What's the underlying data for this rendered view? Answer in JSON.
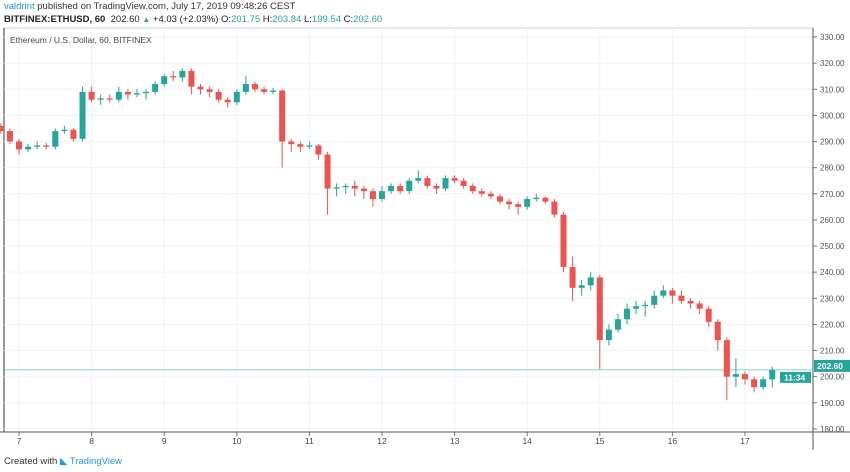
{
  "header": {
    "author": "valdrint",
    "published": "published on TradingView.com, July 17, 2019 09:48:26 CEST",
    "symbol": "BITFINEX:ETHUSD, 60",
    "last": "202.60",
    "change": "+4.03 (+2.03%)",
    "o_label": "O:",
    "o": "201.75",
    "h_label": "H:",
    "h": "203.84",
    "l_label": "L:",
    "l": "199.54",
    "c_label": "C:",
    "c": "202.60"
  },
  "footer": {
    "created_with": "Created with",
    "brand": "TradingView"
  },
  "colors": {
    "up": "#26a69a",
    "down": "#ef5350",
    "price_line": "#26a69a",
    "grid": "#f0f3fa"
  },
  "chart_data": {
    "type": "candlestick",
    "title": "Ethereum / U.S. Dollar, 60, BITFINEX",
    "ylim": [
      177,
      333
    ],
    "y_ticks": [
      "180.00",
      "190.00",
      "200.00",
      "210.00",
      "220.00",
      "230.00",
      "240.00",
      "250.00",
      "260.00",
      "270.00",
      "280.00",
      "290.00",
      "300.00",
      "310.00",
      "320.00",
      "330.00"
    ],
    "x_ticks": [
      "7",
      "8",
      "9",
      "10",
      "11",
      "12",
      "13",
      "14",
      "15",
      "16",
      "17"
    ],
    "grid": true,
    "current_price": 202.6,
    "current_price_label": "202.60",
    "countdown_label": "11:34",
    "candles_columns": [
      "day",
      "hour",
      "open",
      "high",
      "low",
      "close"
    ],
    "candles": [
      [
        6,
        18,
        296,
        297,
        293,
        294
      ],
      [
        6,
        21,
        294,
        295,
        289,
        290
      ],
      [
        7,
        0,
        290,
        291,
        285,
        287
      ],
      [
        7,
        3,
        287,
        289,
        286,
        288
      ],
      [
        7,
        6,
        288,
        290,
        287,
        288.5
      ],
      [
        7,
        9,
        288.5,
        289.5,
        287,
        288
      ],
      [
        7,
        12,
        288,
        295,
        287,
        294
      ],
      [
        7,
        15,
        294,
        296,
        293,
        294.5
      ],
      [
        7,
        18,
        294.5,
        295,
        290,
        291
      ],
      [
        7,
        21,
        291,
        311,
        290,
        309
      ],
      [
        8,
        0,
        309,
        311,
        305,
        306
      ],
      [
        8,
        3,
        306,
        308,
        304,
        306.5
      ],
      [
        8,
        6,
        306.5,
        308,
        305,
        306
      ],
      [
        8,
        9,
        306,
        311,
        305,
        309
      ],
      [
        8,
        12,
        309,
        310,
        306,
        308
      ],
      [
        8,
        15,
        308,
        310,
        307,
        308.5
      ],
      [
        8,
        18,
        308.5,
        310,
        306,
        309
      ],
      [
        8,
        21,
        309,
        313,
        308,
        312
      ],
      [
        9,
        0,
        312,
        316,
        311,
        315
      ],
      [
        9,
        3,
        315,
        317,
        313,
        314.5
      ],
      [
        9,
        6,
        314.5,
        318,
        313,
        317
      ],
      [
        9,
        9,
        317,
        318,
        308,
        311
      ],
      [
        9,
        12,
        311,
        312,
        308,
        310
      ],
      [
        9,
        15,
        310,
        311,
        307,
        309
      ],
      [
        9,
        18,
        309,
        310,
        305,
        306
      ],
      [
        9,
        21,
        306,
        307,
        303,
        305
      ],
      [
        10,
        0,
        305,
        310,
        304,
        309
      ],
      [
        10,
        3,
        309,
        315,
        308,
        312
      ],
      [
        10,
        6,
        312,
        313,
        309,
        310
      ],
      [
        10,
        9,
        310,
        311,
        308,
        309
      ],
      [
        10,
        12,
        309,
        310.5,
        308,
        309.5
      ],
      [
        10,
        15,
        309.5,
        310,
        280,
        290
      ],
      [
        10,
        18,
        290,
        291,
        286,
        289
      ],
      [
        10,
        21,
        289,
        290,
        286,
        288
      ],
      [
        11,
        0,
        288,
        290,
        287,
        288.5
      ],
      [
        11,
        3,
        288.5,
        289,
        283,
        285
      ],
      [
        11,
        6,
        285,
        286,
        262,
        272
      ],
      [
        11,
        9,
        272,
        274,
        269,
        272.5
      ],
      [
        11,
        12,
        272.5,
        274,
        270,
        273
      ],
      [
        11,
        15,
        273,
        275,
        269,
        272
      ],
      [
        11,
        18,
        272,
        273,
        268,
        271
      ],
      [
        11,
        21,
        271,
        272,
        265,
        268
      ],
      [
        12,
        0,
        268,
        273,
        267,
        271
      ],
      [
        12,
        3,
        271,
        274,
        270,
        273
      ],
      [
        12,
        6,
        273,
        274,
        270,
        271
      ],
      [
        12,
        9,
        271,
        276,
        270,
        275
      ],
      [
        12,
        12,
        275,
        279,
        274,
        276
      ],
      [
        12,
        15,
        276,
        277,
        272,
        273
      ],
      [
        12,
        18,
        273,
        274,
        270,
        272
      ],
      [
        12,
        21,
        272,
        277,
        271,
        276
      ],
      [
        13,
        0,
        276,
        277,
        274,
        275
      ],
      [
        13,
        3,
        275,
        276,
        272,
        273
      ],
      [
        13,
        6,
        273,
        274,
        270,
        271
      ],
      [
        13,
        9,
        271,
        272,
        269,
        270
      ],
      [
        13,
        12,
        270,
        271,
        268,
        269
      ],
      [
        13,
        15,
        269,
        270,
        266,
        267
      ],
      [
        13,
        18,
        267,
        268,
        264,
        266
      ],
      [
        13,
        21,
        266,
        267,
        262,
        265
      ],
      [
        14,
        0,
        265,
        269,
        264,
        268
      ],
      [
        14,
        3,
        268,
        270,
        267,
        268.5
      ],
      [
        14,
        6,
        268.5,
        269,
        266,
        267
      ],
      [
        14,
        9,
        267,
        268,
        261,
        262
      ],
      [
        14,
        12,
        262,
        263,
        240,
        242
      ],
      [
        14,
        15,
        242,
        246,
        229,
        234
      ],
      [
        14,
        18,
        234,
        237,
        231,
        235
      ],
      [
        14,
        21,
        235,
        240,
        233,
        238
      ],
      [
        15,
        0,
        238,
        239,
        203,
        214
      ],
      [
        15,
        3,
        214,
        220,
        212,
        218
      ],
      [
        15,
        6,
        218,
        224,
        217,
        222
      ],
      [
        15,
        9,
        222,
        228,
        220,
        226
      ],
      [
        15,
        12,
        226,
        229,
        224,
        227
      ],
      [
        15,
        15,
        227,
        229,
        223,
        227.5
      ],
      [
        15,
        18,
        227.5,
        233,
        226,
        231
      ],
      [
        15,
        21,
        231,
        235,
        230,
        233
      ],
      [
        16,
        0,
        233,
        234,
        228,
        231
      ],
      [
        16,
        3,
        231,
        233,
        228,
        229
      ],
      [
        16,
        6,
        229,
        230,
        226,
        228
      ],
      [
        16,
        9,
        228,
        229,
        224,
        226
      ],
      [
        16,
        12,
        226,
        227,
        219,
        221
      ],
      [
        16,
        15,
        221,
        222,
        210,
        214
      ],
      [
        16,
        18,
        214,
        215,
        191,
        200
      ],
      [
        16,
        21,
        200,
        207,
        196,
        201
      ],
      [
        17,
        0,
        201,
        202,
        197,
        199
      ],
      [
        17,
        3,
        199,
        200,
        194,
        196
      ],
      [
        17,
        6,
        196,
        200,
        195,
        199
      ],
      [
        17,
        9,
        199,
        203.84,
        196,
        202.6
      ]
    ]
  }
}
